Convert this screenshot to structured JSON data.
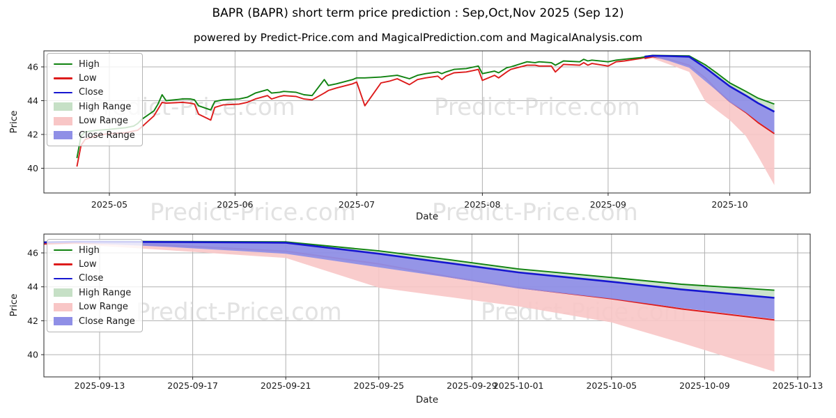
{
  "title": "BAPR (BAPR) short term price prediction : Sep,Oct,Nov 2025 (Sep 12)",
  "subtitle": "powered by Predict-Price.com and MagicalPrediction.com and MagicalAnalysis.com",
  "watermark_text": "Predict-Price.com",
  "axes": {
    "x_label": "Date",
    "y_label": "Price"
  },
  "colors": {
    "high_line": "#108210",
    "low_line": "#dd1b1b",
    "close_line": "#1616d0",
    "high_band": "#c6e0c6",
    "low_band": "#f8c6c6",
    "close_band": "#8f8fe6",
    "grid": "#b0b0b0",
    "spine": "#262626",
    "watermark": "#cbcbcb"
  },
  "legend": {
    "items": [
      {
        "label": "High",
        "swatch": "line",
        "color": "#108210"
      },
      {
        "label": "Low",
        "swatch": "line",
        "color": "#dd1b1b"
      },
      {
        "label": "Close",
        "swatch": "line",
        "color": "#1616d0"
      },
      {
        "label": "High Range",
        "swatch": "patch",
        "color": "#c6e0c6"
      },
      {
        "label": "Low Range",
        "swatch": "patch",
        "color": "#f8c6c6"
      },
      {
        "label": "Close Range",
        "swatch": "patch",
        "color": "#8f8fe6"
      }
    ]
  },
  "chart_data": {
    "type": "line",
    "charts": [
      {
        "role": "history-plus-prediction",
        "xlabel": "Date",
        "ylabel": "Price",
        "ylim": [
          38.5,
          46.95
        ],
        "yticks": [
          40,
          42,
          44,
          46
        ],
        "xticks": [
          {
            "date": "2025-05-01",
            "label": "2025-05"
          },
          {
            "date": "2025-06-01",
            "label": "2025-06"
          },
          {
            "date": "2025-07-01",
            "label": "2025-07"
          },
          {
            "date": "2025-08-01",
            "label": "2025-08"
          },
          {
            "date": "2025-09-01",
            "label": "2025-09"
          },
          {
            "date": "2025-10-01",
            "label": "2025-10"
          }
        ]
      },
      {
        "role": "prediction-zoom",
        "xlabel": "Date",
        "ylabel": "Price",
        "ylim": [
          38.7,
          47.1
        ],
        "yticks": [
          40,
          42,
          44,
          46
        ],
        "xticks": [
          {
            "date": "2025-09-13",
            "label": "2025-09-13"
          },
          {
            "date": "2025-09-17",
            "label": "2025-09-17"
          },
          {
            "date": "2025-09-21",
            "label": "2025-09-21"
          },
          {
            "date": "2025-09-25",
            "label": "2025-09-25"
          },
          {
            "date": "2025-09-29",
            "label": "2025-09-29"
          },
          {
            "date": "2025-10-01",
            "label": "2025-10-01"
          },
          {
            "date": "2025-10-05",
            "label": "2025-10-05"
          },
          {
            "date": "2025-10-09",
            "label": "2025-10-09"
          },
          {
            "date": "2025-10-13",
            "label": "2025-10-13"
          }
        ]
      }
    ],
    "history": {
      "high": [
        [
          "2025-04-23",
          40.6
        ],
        [
          "2025-04-24",
          41.9
        ],
        [
          "2025-04-25",
          42.15
        ],
        [
          "2025-04-28",
          42.25
        ],
        [
          "2025-05-01",
          42.3
        ],
        [
          "2025-05-05",
          42.4
        ],
        [
          "2025-05-07",
          42.5
        ],
        [
          "2025-05-08",
          42.65
        ],
        [
          "2025-05-09",
          42.9
        ],
        [
          "2025-05-12",
          43.4
        ],
        [
          "2025-05-13",
          43.8
        ],
        [
          "2025-05-14",
          44.35
        ],
        [
          "2025-05-15",
          44.0
        ],
        [
          "2025-05-19",
          44.1
        ],
        [
          "2025-05-21",
          44.1
        ],
        [
          "2025-05-22",
          44.05
        ],
        [
          "2025-05-23",
          43.7
        ],
        [
          "2025-05-26",
          43.45
        ],
        [
          "2025-05-27",
          43.95
        ],
        [
          "2025-05-29",
          44.05
        ],
        [
          "2025-06-02",
          44.1
        ],
        [
          "2025-06-04",
          44.2
        ],
        [
          "2025-06-06",
          44.45
        ],
        [
          "2025-06-09",
          44.65
        ],
        [
          "2025-06-10",
          44.45
        ],
        [
          "2025-06-12",
          44.5
        ],
        [
          "2025-06-13",
          44.55
        ],
        [
          "2025-06-16",
          44.5
        ],
        [
          "2025-06-18",
          44.35
        ],
        [
          "2025-06-20",
          44.3
        ],
        [
          "2025-06-23",
          45.25
        ],
        [
          "2025-06-24",
          44.9
        ],
        [
          "2025-06-26",
          45.0
        ],
        [
          "2025-06-30",
          45.25
        ],
        [
          "2025-07-01",
          45.35
        ],
        [
          "2025-07-03",
          45.35
        ],
        [
          "2025-07-07",
          45.4
        ],
        [
          "2025-07-09",
          45.45
        ],
        [
          "2025-07-11",
          45.5
        ],
        [
          "2025-07-14",
          45.3
        ],
        [
          "2025-07-16",
          45.5
        ],
        [
          "2025-07-18",
          45.6
        ],
        [
          "2025-07-21",
          45.7
        ],
        [
          "2025-07-22",
          45.6
        ],
        [
          "2025-07-23",
          45.7
        ],
        [
          "2025-07-25",
          45.85
        ],
        [
          "2025-07-28",
          45.9
        ],
        [
          "2025-07-30",
          46.0
        ],
        [
          "2025-07-31",
          46.05
        ],
        [
          "2025-08-01",
          45.6
        ],
        [
          "2025-08-04",
          45.75
        ],
        [
          "2025-08-05",
          45.65
        ],
        [
          "2025-08-07",
          45.95
        ],
        [
          "2025-08-08",
          46.0
        ],
        [
          "2025-08-12",
          46.3
        ],
        [
          "2025-08-14",
          46.25
        ],
        [
          "2025-08-15",
          46.3
        ],
        [
          "2025-08-18",
          46.25
        ],
        [
          "2025-08-19",
          46.1
        ],
        [
          "2025-08-21",
          46.35
        ],
        [
          "2025-08-25",
          46.3
        ],
        [
          "2025-08-26",
          46.45
        ],
        [
          "2025-08-27",
          46.35
        ],
        [
          "2025-08-28",
          46.4
        ],
        [
          "2025-09-01",
          46.3
        ],
        [
          "2025-09-03",
          46.4
        ],
        [
          "2025-09-05",
          46.45
        ],
        [
          "2025-09-09",
          46.55
        ],
        [
          "2025-09-12",
          46.67
        ]
      ],
      "low": [
        [
          "2025-04-23",
          40.1
        ],
        [
          "2025-04-24",
          41.35
        ],
        [
          "2025-04-25",
          41.7
        ],
        [
          "2025-04-28",
          41.95
        ],
        [
          "2025-05-01",
          42.05
        ],
        [
          "2025-05-05",
          42.1
        ],
        [
          "2025-05-07",
          42.2
        ],
        [
          "2025-05-08",
          42.25
        ],
        [
          "2025-05-09",
          42.45
        ],
        [
          "2025-05-12",
          43.1
        ],
        [
          "2025-05-13",
          43.5
        ],
        [
          "2025-05-14",
          43.9
        ],
        [
          "2025-05-15",
          43.85
        ],
        [
          "2025-05-19",
          43.9
        ],
        [
          "2025-05-21",
          43.85
        ],
        [
          "2025-05-22",
          43.8
        ],
        [
          "2025-05-23",
          43.2
        ],
        [
          "2025-05-26",
          42.85
        ],
        [
          "2025-05-27",
          43.6
        ],
        [
          "2025-05-29",
          43.75
        ],
        [
          "2025-06-02",
          43.8
        ],
        [
          "2025-06-04",
          43.9
        ],
        [
          "2025-06-06",
          44.1
        ],
        [
          "2025-06-09",
          44.3
        ],
        [
          "2025-06-10",
          44.1
        ],
        [
          "2025-06-12",
          44.25
        ],
        [
          "2025-06-13",
          44.3
        ],
        [
          "2025-06-16",
          44.25
        ],
        [
          "2025-06-18",
          44.1
        ],
        [
          "2025-06-20",
          44.05
        ],
        [
          "2025-06-23",
          44.45
        ],
        [
          "2025-06-24",
          44.6
        ],
        [
          "2025-06-26",
          44.75
        ],
        [
          "2025-06-30",
          45.0
        ],
        [
          "2025-07-01",
          45.1
        ],
        [
          "2025-07-03",
          43.7
        ],
        [
          "2025-07-07",
          45.05
        ],
        [
          "2025-07-09",
          45.15
        ],
        [
          "2025-07-11",
          45.3
        ],
        [
          "2025-07-14",
          44.95
        ],
        [
          "2025-07-16",
          45.25
        ],
        [
          "2025-07-18",
          45.35
        ],
        [
          "2025-07-21",
          45.45
        ],
        [
          "2025-07-22",
          45.25
        ],
        [
          "2025-07-23",
          45.45
        ],
        [
          "2025-07-25",
          45.65
        ],
        [
          "2025-07-28",
          45.7
        ],
        [
          "2025-07-30",
          45.8
        ],
        [
          "2025-07-31",
          45.85
        ],
        [
          "2025-08-01",
          45.2
        ],
        [
          "2025-08-04",
          45.5
        ],
        [
          "2025-08-05",
          45.35
        ],
        [
          "2025-08-07",
          45.7
        ],
        [
          "2025-08-08",
          45.85
        ],
        [
          "2025-08-12",
          46.1
        ],
        [
          "2025-08-14",
          46.1
        ],
        [
          "2025-08-15",
          46.05
        ],
        [
          "2025-08-18",
          46.05
        ],
        [
          "2025-08-19",
          45.7
        ],
        [
          "2025-08-21",
          46.15
        ],
        [
          "2025-08-25",
          46.1
        ],
        [
          "2025-08-26",
          46.25
        ],
        [
          "2025-08-27",
          46.1
        ],
        [
          "2025-08-28",
          46.2
        ],
        [
          "2025-09-01",
          46.05
        ],
        [
          "2025-09-03",
          46.3
        ],
        [
          "2025-09-05",
          46.35
        ],
        [
          "2025-09-09",
          46.5
        ],
        [
          "2025-09-12",
          46.65
        ]
      ]
    },
    "prediction": {
      "close": [
        [
          "2025-09-10",
          46.6
        ],
        [
          "2025-09-12",
          46.66
        ],
        [
          "2025-09-16",
          46.64
        ],
        [
          "2025-09-21",
          46.6
        ],
        [
          "2025-09-25",
          45.95
        ],
        [
          "2025-09-28",
          45.4
        ],
        [
          "2025-10-01",
          44.85
        ],
        [
          "2025-10-05",
          44.3
        ],
        [
          "2025-10-08",
          43.85
        ],
        [
          "2025-10-12",
          43.35
        ]
      ],
      "high": [
        [
          "2025-09-10",
          46.62
        ],
        [
          "2025-09-12",
          46.68
        ],
        [
          "2025-09-16",
          46.67
        ],
        [
          "2025-09-21",
          46.65
        ],
        [
          "2025-09-25",
          46.12
        ],
        [
          "2025-09-28",
          45.6
        ],
        [
          "2025-10-01",
          45.05
        ],
        [
          "2025-10-05",
          44.55
        ],
        [
          "2025-10-08",
          44.15
        ],
        [
          "2025-10-12",
          43.8
        ]
      ],
      "low": [
        [
          "2025-09-10",
          46.5
        ],
        [
          "2025-09-12",
          46.6
        ],
        [
          "2025-09-16",
          46.45
        ],
        [
          "2025-09-21",
          46.1
        ],
        [
          "2025-09-25",
          45.35
        ],
        [
          "2025-09-28",
          44.6
        ],
        [
          "2025-10-01",
          43.95
        ],
        [
          "2025-10-05",
          43.3
        ],
        [
          "2025-10-08",
          42.7
        ],
        [
          "2025-10-12",
          42.05
        ]
      ],
      "close_lower": [
        [
          "2025-09-10",
          46.55
        ],
        [
          "2025-09-12",
          46.6
        ],
        [
          "2025-09-16",
          46.35
        ],
        [
          "2025-09-21",
          45.95
        ],
        [
          "2025-09-25",
          45.15
        ],
        [
          "2025-09-28",
          44.55
        ],
        [
          "2025-10-01",
          43.9
        ],
        [
          "2025-10-05",
          43.3
        ],
        [
          "2025-10-08",
          42.75
        ],
        [
          "2025-10-12",
          42.1
        ]
      ],
      "low_lower": [
        [
          "2025-09-10",
          46.45
        ],
        [
          "2025-09-12",
          46.5
        ],
        [
          "2025-09-16",
          46.15
        ],
        [
          "2025-09-21",
          45.7
        ],
        [
          "2025-09-25",
          43.95
        ],
        [
          "2025-09-28",
          43.4
        ],
        [
          "2025-10-01",
          42.85
        ],
        [
          "2025-10-05",
          41.9
        ],
        [
          "2025-10-08",
          40.7
        ],
        [
          "2025-10-12",
          39.0
        ]
      ]
    }
  }
}
